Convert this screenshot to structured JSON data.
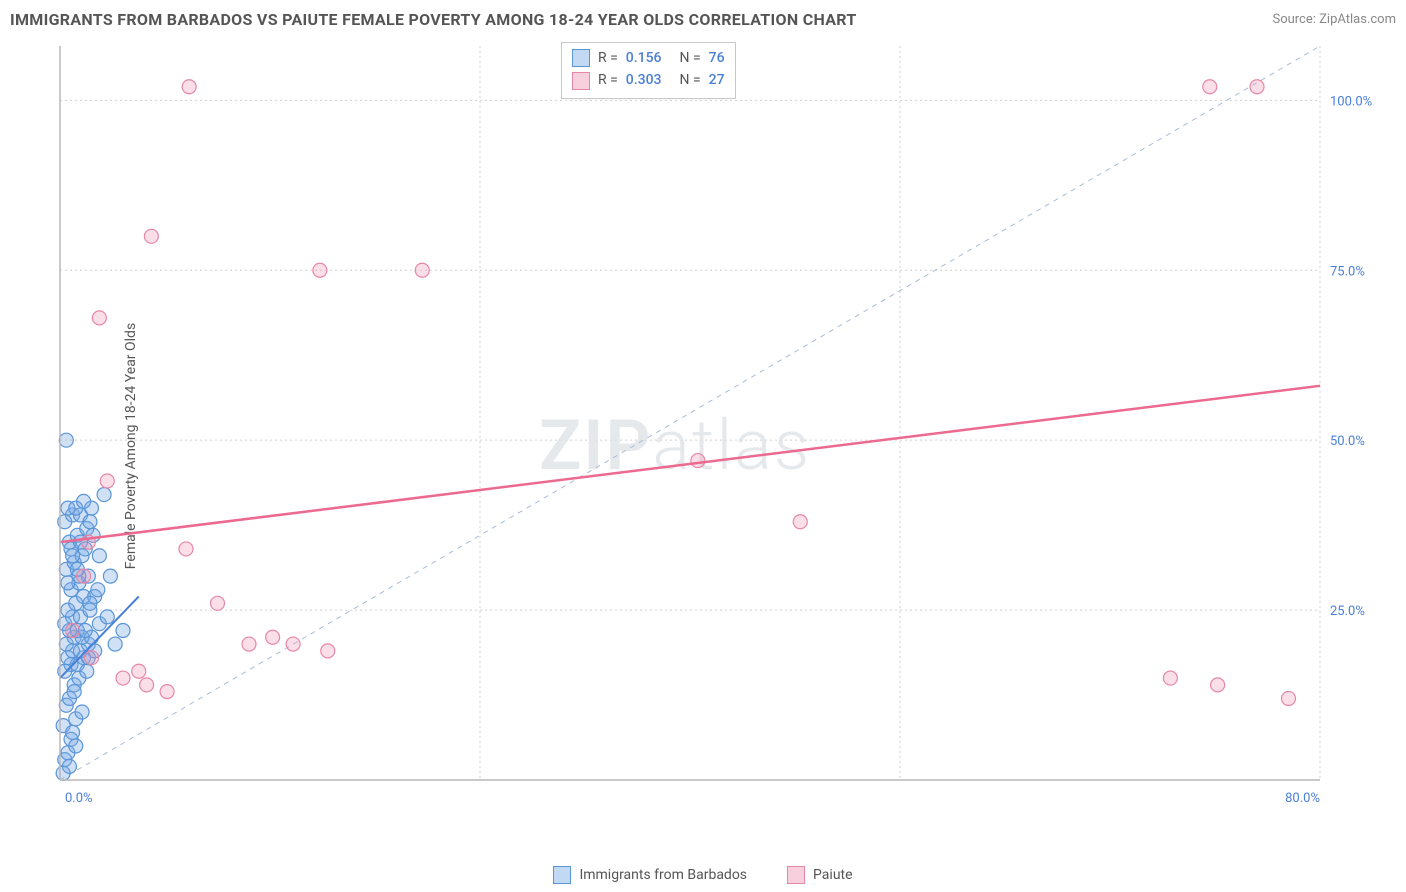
{
  "title": "IMMIGRANTS FROM BARBADOS VS PAIUTE FEMALE POVERTY AMONG 18-24 YEAR OLDS CORRELATION CHART",
  "source": "Source: ZipAtlas.com",
  "y_axis_label": "Female Poverty Among 18-24 Year Olds",
  "watermark": {
    "bold": "ZIP",
    "light": "atlas"
  },
  "chart": {
    "type": "scatter",
    "background_color": "#ffffff",
    "grid_color": "#d0d0d0",
    "xlim": [
      0,
      80
    ],
    "ylim": [
      0,
      108
    ],
    "x_ticks": [
      0,
      80
    ],
    "x_tick_labels": [
      "0.0%",
      "80.0%"
    ],
    "y_ticks": [
      25,
      50,
      75,
      100
    ],
    "y_tick_labels": [
      "25.0%",
      "50.0%",
      "75.0%",
      "100.0%"
    ],
    "tick_color": "#4a7fd8",
    "tick_fontsize": 13,
    "diagonal_ref": {
      "from": [
        0,
        0
      ],
      "to": [
        80,
        108
      ],
      "color": "#a8bcd8",
      "dash": "5 5"
    },
    "marker_radius": 7,
    "series": {
      "barbados": {
        "label": "Immigrants from Barbados",
        "color_fill": "rgba(120,170,230,0.35)",
        "color_stroke": "#5a95d8",
        "R": "0.156",
        "N": "76",
        "trend": {
          "from": [
            0,
            15
          ],
          "to": [
            5,
            27
          ],
          "color": "#4a7fd8",
          "width": 2
        },
        "points": [
          [
            0.3,
            3
          ],
          [
            0.5,
            4
          ],
          [
            0.7,
            6
          ],
          [
            0.2,
            8
          ],
          [
            0.8,
            7
          ],
          [
            1.0,
            9
          ],
          [
            0.4,
            11
          ],
          [
            0.6,
            12
          ],
          [
            0.9,
            14
          ],
          [
            1.2,
            15
          ],
          [
            0.3,
            16
          ],
          [
            0.7,
            17
          ],
          [
            1.1,
            17
          ],
          [
            1.5,
            18
          ],
          [
            0.5,
            18
          ],
          [
            0.8,
            19
          ],
          [
            1.3,
            19
          ],
          [
            1.8,
            20
          ],
          [
            0.4,
            20
          ],
          [
            0.9,
            21
          ],
          [
            1.4,
            21
          ],
          [
            2.0,
            21
          ],
          [
            0.6,
            22
          ],
          [
            1.1,
            22
          ],
          [
            1.6,
            22
          ],
          [
            0.3,
            23
          ],
          [
            0.8,
            24
          ],
          [
            1.3,
            24
          ],
          [
            1.9,
            25
          ],
          [
            0.5,
            25
          ],
          [
            1.0,
            26
          ],
          [
            1.5,
            27
          ],
          [
            2.2,
            27
          ],
          [
            0.7,
            28
          ],
          [
            1.2,
            29
          ],
          [
            1.8,
            30
          ],
          [
            0.4,
            31
          ],
          [
            0.9,
            32
          ],
          [
            1.4,
            33
          ],
          [
            2.5,
            33
          ],
          [
            0.6,
            35
          ],
          [
            1.1,
            36
          ],
          [
            1.7,
            37
          ],
          [
            0.3,
            38
          ],
          [
            0.8,
            39
          ],
          [
            1.3,
            39
          ],
          [
            2.0,
            40
          ],
          [
            0.5,
            40
          ],
          [
            1.0,
            40
          ],
          [
            4.0,
            22
          ],
          [
            1.5,
            41
          ],
          [
            2.8,
            42
          ],
          [
            0.7,
            34
          ],
          [
            1.2,
            30
          ],
          [
            1.9,
            26
          ],
          [
            0.4,
            50
          ],
          [
            2.5,
            23
          ],
          [
            3.0,
            24
          ],
          [
            3.5,
            20
          ],
          [
            1.8,
            18
          ],
          [
            2.2,
            19
          ],
          [
            0.9,
            13
          ],
          [
            1.4,
            10
          ],
          [
            1.0,
            5
          ],
          [
            0.6,
            2
          ],
          [
            0.2,
            1
          ],
          [
            1.7,
            16
          ],
          [
            2.4,
            28
          ],
          [
            3.2,
            30
          ],
          [
            0.8,
            33
          ],
          [
            1.3,
            35
          ],
          [
            1.9,
            38
          ],
          [
            0.5,
            29
          ],
          [
            1.1,
            31
          ],
          [
            1.6,
            34
          ],
          [
            2.1,
            36
          ]
        ]
      },
      "paiute": {
        "label": "Paiute",
        "color_fill": "rgba(240,150,180,0.30)",
        "color_stroke": "#e688a5",
        "R": "0.303",
        "N": "27",
        "trend": {
          "from": [
            0,
            35
          ],
          "to": [
            80,
            58
          ],
          "color": "#ec6a8f",
          "width": 2.5
        },
        "points": [
          [
            1.8,
            35
          ],
          [
            4.0,
            15
          ],
          [
            5.5,
            14
          ],
          [
            6.8,
            13
          ],
          [
            5.0,
            16
          ],
          [
            8.0,
            34
          ],
          [
            10.0,
            26
          ],
          [
            12.0,
            20
          ],
          [
            13.5,
            21
          ],
          [
            14.8,
            20
          ],
          [
            17.0,
            19
          ],
          [
            8.2,
            102
          ],
          [
            2.5,
            68
          ],
          [
            5.8,
            80
          ],
          [
            16.5,
            75
          ],
          [
            23.0,
            75
          ],
          [
            40.5,
            47
          ],
          [
            47.0,
            38
          ],
          [
            73.0,
            102
          ],
          [
            76.0,
            102
          ],
          [
            70.5,
            15
          ],
          [
            73.5,
            14
          ],
          [
            78.0,
            12
          ],
          [
            3.0,
            44
          ],
          [
            1.5,
            30
          ],
          [
            0.8,
            22
          ],
          [
            2.0,
            18
          ]
        ]
      }
    }
  },
  "stats_box": {
    "rows": [
      {
        "swatch": "blue",
        "R": "0.156",
        "N": "76"
      },
      {
        "swatch": "pink",
        "R": "0.303",
        "N": "27"
      }
    ]
  },
  "legend": [
    {
      "swatch": "blue",
      "label": "Immigrants from Barbados"
    },
    {
      "swatch": "pink",
      "label": "Paiute"
    }
  ]
}
